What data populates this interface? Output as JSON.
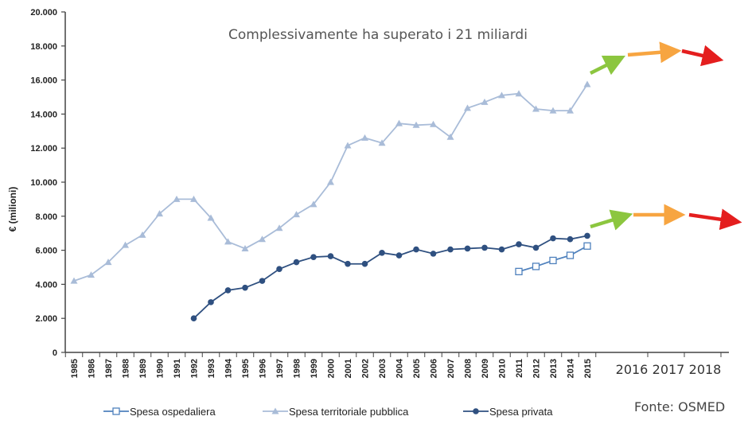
{
  "chart_data": {
    "type": "line",
    "annotation": "Complessivamente ha superato i 21 miliardi",
    "source": "Fonte: OSMED",
    "ylabel": "€ (milioni)",
    "xlabel": "",
    "ylim": [
      0,
      20000
    ],
    "y_ticks": [
      {
        "value": 0,
        "label": "0"
      },
      {
        "value": 2000,
        "label": "2.000"
      },
      {
        "value": 4000,
        "label": "4.000"
      },
      {
        "value": 6000,
        "label": "6.000"
      },
      {
        "value": 8000,
        "label": "8.000"
      },
      {
        "value": 10000,
        "label": "10.000"
      },
      {
        "value": 12000,
        "label": "12.000"
      },
      {
        "value": 14000,
        "label": "14.000"
      },
      {
        "value": 16000,
        "label": "16.000"
      },
      {
        "value": 18000,
        "label": "18.000"
      },
      {
        "value": 20000,
        "label": "20.000"
      }
    ],
    "categories": [
      "1985",
      "1986",
      "1987",
      "1988",
      "1989",
      "1990",
      "1991",
      "1992",
      "1993",
      "1994",
      "1995",
      "1996",
      "1997",
      "1998",
      "1999",
      "2000",
      "2001",
      "2002",
      "2003",
      "2004",
      "2005",
      "2006",
      "2007",
      "2008",
      "2009",
      "2010",
      "2011",
      "2012",
      "2013",
      "2014",
      "2015"
    ],
    "extra_categories": [
      "2016",
      "2017",
      "2018"
    ],
    "grid": false,
    "legend_position": "bottom",
    "series": [
      {
        "name": "Spesa ospedaliera",
        "color": "#4f81bd",
        "marker": "square-open",
        "values": [
          null,
          null,
          null,
          null,
          null,
          null,
          null,
          null,
          null,
          null,
          null,
          null,
          null,
          null,
          null,
          null,
          null,
          null,
          null,
          null,
          null,
          null,
          null,
          null,
          null,
          null,
          4750,
          5050,
          5400,
          5700,
          6250
        ]
      },
      {
        "name": "Spesa territoriale pubblica",
        "color": "#a9bcd8",
        "marker": "triangle",
        "values": [
          4200,
          4550,
          5300,
          6300,
          6900,
          8150,
          9000,
          9000,
          7900,
          6500,
          6100,
          6650,
          7300,
          8100,
          8700,
          10000,
          12150,
          12600,
          12300,
          13450,
          13350,
          13400,
          12650,
          14350,
          14700,
          15100,
          15200,
          14300,
          14200,
          14200,
          15750
        ]
      },
      {
        "name": "Spesa privata",
        "color": "#2f5080",
        "marker": "circle",
        "values": [
          null,
          null,
          null,
          null,
          null,
          null,
          null,
          2000,
          2950,
          3650,
          3800,
          4200,
          4900,
          5300,
          5600,
          5650,
          5200,
          5200,
          5850,
          5700,
          6050,
          5800,
          6050,
          6100,
          6150,
          6050,
          6350,
          6150,
          6700,
          6650,
          6850
        ]
      }
    ],
    "trend_arrows": [
      {
        "color": "#8cc63f"
      },
      {
        "color": "#f7a541"
      },
      {
        "color": "#e41e1e"
      }
    ]
  }
}
